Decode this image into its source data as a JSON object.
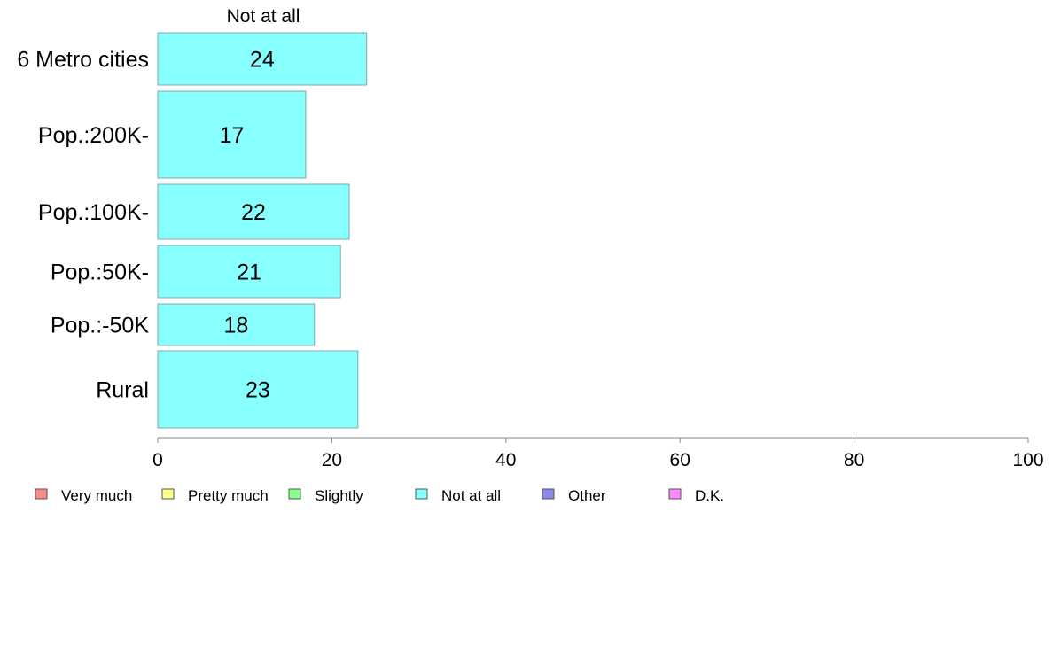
{
  "chart_data": {
    "type": "bar",
    "orientation": "horizontal",
    "column_title": "Not at all",
    "categories": [
      "6 Metro cities",
      "Pop.:200K-",
      "Pop.:100K-",
      "Pop.:50K-",
      "Pop.:-50K",
      "Rural"
    ],
    "series": [
      {
        "name": "Not at all",
        "values": [
          24,
          17,
          22,
          21,
          18,
          23
        ],
        "color": "#88ffff"
      }
    ],
    "xlim": [
      0,
      100
    ],
    "xticks": [
      0,
      20,
      40,
      60,
      80,
      100
    ],
    "legend_placement": "bottom",
    "legend": [
      {
        "label": "Very much",
        "color": "#ff8888"
      },
      {
        "label": "Pretty much",
        "color": "#ffff88"
      },
      {
        "label": "Slightly",
        "color": "#88ff88"
      },
      {
        "label": "Not at all",
        "color": "#88ffff"
      },
      {
        "label": "Other",
        "color": "#8888ee"
      },
      {
        "label": "D.K.",
        "color": "#ff88ff"
      }
    ],
    "grid": false
  }
}
